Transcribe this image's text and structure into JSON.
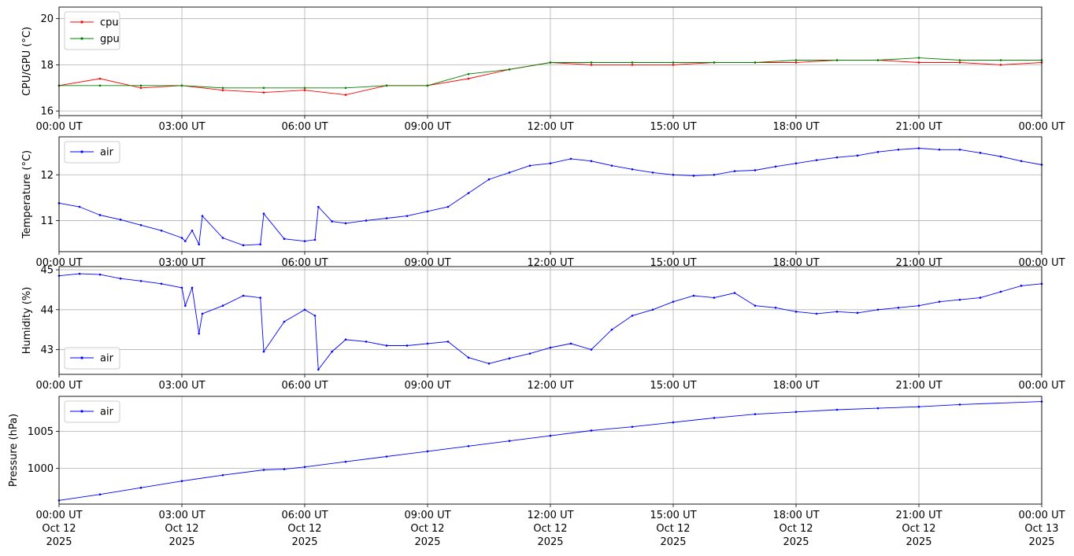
{
  "chart_data": [
    {
      "type": "line",
      "ylabel": "CPU/GPU (°C)",
      "xlim": [
        "2025-10-12 00:00",
        "2025-10-13 00:00"
      ],
      "ylim": [
        15.8,
        20.5
      ],
      "yticks": [
        16,
        18,
        20
      ],
      "grid": true,
      "legend": "upper-left",
      "series": [
        {
          "name": "cpu",
          "color": "#ff0000",
          "x": [
            "2025-10-12 00:00",
            "2025-10-12 01:00",
            "2025-10-12 02:00",
            "2025-10-12 03:00",
            "2025-10-12 04:00",
            "2025-10-12 05:00",
            "2025-10-12 06:00",
            "2025-10-12 07:00",
            "2025-10-12 08:00",
            "2025-10-12 09:00",
            "2025-10-12 10:00",
            "2025-10-12 11:00",
            "2025-10-12 12:00",
            "2025-10-12 13:00",
            "2025-10-12 14:00",
            "2025-10-12 15:00",
            "2025-10-12 16:00",
            "2025-10-12 17:00",
            "2025-10-12 18:00",
            "2025-10-12 19:00",
            "2025-10-12 20:00",
            "2025-10-12 21:00",
            "2025-10-12 22:00",
            "2025-10-12 23:00",
            "2025-10-13 00:00"
          ],
          "y": [
            17.1,
            17.4,
            17.0,
            17.1,
            16.9,
            16.8,
            16.9,
            16.7,
            17.1,
            17.1,
            17.4,
            17.8,
            18.1,
            18.0,
            18.0,
            18.0,
            18.1,
            18.1,
            18.1,
            18.2,
            18.2,
            18.1,
            18.1,
            18.0,
            18.1
          ]
        },
        {
          "name": "gpu",
          "color": "#008000",
          "x": [
            "2025-10-12 00:00",
            "2025-10-12 01:00",
            "2025-10-12 02:00",
            "2025-10-12 03:00",
            "2025-10-12 04:00",
            "2025-10-12 05:00",
            "2025-10-12 06:00",
            "2025-10-12 07:00",
            "2025-10-12 08:00",
            "2025-10-12 09:00",
            "2025-10-12 10:00",
            "2025-10-12 11:00",
            "2025-10-12 12:00",
            "2025-10-12 13:00",
            "2025-10-12 14:00",
            "2025-10-12 15:00",
            "2025-10-12 16:00",
            "2025-10-12 17:00",
            "2025-10-12 18:00",
            "2025-10-12 19:00",
            "2025-10-12 20:00",
            "2025-10-12 21:00",
            "2025-10-12 22:00",
            "2025-10-12 23:00",
            "2025-10-13 00:00"
          ],
          "y": [
            17.1,
            17.1,
            17.1,
            17.1,
            17.0,
            17.0,
            17.0,
            17.0,
            17.1,
            17.1,
            17.6,
            17.8,
            18.1,
            18.1,
            18.1,
            18.1,
            18.1,
            18.1,
            18.2,
            18.2,
            18.2,
            18.3,
            18.2,
            18.2,
            18.2
          ]
        }
      ]
    },
    {
      "type": "line",
      "ylabel": "Temperature (°C)",
      "xlim": [
        "2025-10-12 00:00",
        "2025-10-13 00:00"
      ],
      "ylim": [
        10.32,
        12.83
      ],
      "yticks": [
        11,
        12
      ],
      "grid": true,
      "legend": "upper-left",
      "series": [
        {
          "name": "air",
          "color": "#0000ff",
          "x": [
            "2025-10-12 00:00",
            "2025-10-12 00:30",
            "2025-10-12 01:00",
            "2025-10-12 01:30",
            "2025-10-12 02:00",
            "2025-10-12 02:30",
            "2025-10-12 03:00",
            "2025-10-12 03:05",
            "2025-10-12 03:15",
            "2025-10-12 03:25",
            "2025-10-12 03:30",
            "2025-10-12 04:00",
            "2025-10-12 04:30",
            "2025-10-12 04:55",
            "2025-10-12 05:00",
            "2025-10-12 05:30",
            "2025-10-12 06:00",
            "2025-10-12 06:15",
            "2025-10-12 06:20",
            "2025-10-12 06:40",
            "2025-10-12 07:00",
            "2025-10-12 07:30",
            "2025-10-12 08:00",
            "2025-10-12 08:30",
            "2025-10-12 09:00",
            "2025-10-12 09:30",
            "2025-10-12 10:00",
            "2025-10-12 10:30",
            "2025-10-12 11:00",
            "2025-10-12 11:30",
            "2025-10-12 12:00",
            "2025-10-12 12:30",
            "2025-10-12 13:00",
            "2025-10-12 13:30",
            "2025-10-12 14:00",
            "2025-10-12 14:30",
            "2025-10-12 15:00",
            "2025-10-12 15:30",
            "2025-10-12 16:00",
            "2025-10-12 16:30",
            "2025-10-12 17:00",
            "2025-10-12 17:30",
            "2025-10-12 18:00",
            "2025-10-12 18:30",
            "2025-10-12 19:00",
            "2025-10-12 19:30",
            "2025-10-12 20:00",
            "2025-10-12 20:30",
            "2025-10-12 21:00",
            "2025-10-12 21:30",
            "2025-10-12 22:00",
            "2025-10-12 22:30",
            "2025-10-12 23:00",
            "2025-10-12 23:30",
            "2025-10-13 00:00"
          ],
          "y": [
            11.38,
            11.3,
            11.12,
            11.02,
            10.9,
            10.78,
            10.62,
            10.55,
            10.78,
            10.48,
            11.1,
            10.62,
            10.46,
            10.48,
            11.15,
            10.6,
            10.55,
            10.58,
            11.3,
            10.98,
            10.94,
            11.0,
            11.05,
            11.1,
            11.2,
            11.3,
            11.6,
            11.9,
            12.05,
            12.2,
            12.25,
            12.35,
            12.3,
            12.2,
            12.12,
            12.05,
            12.0,
            11.98,
            12.0,
            12.08,
            12.1,
            12.18,
            12.25,
            12.32,
            12.38,
            12.42,
            12.5,
            12.55,
            12.58,
            12.55,
            12.55,
            12.48,
            12.4,
            12.3,
            12.22
          ]
        }
      ]
    },
    {
      "type": "line",
      "ylabel": "Humidity (%)",
      "xlim": [
        "2025-10-12 00:00",
        "2025-10-13 00:00"
      ],
      "ylim": [
        42.38,
        45.08
      ],
      "yticks": [
        43,
        44,
        45
      ],
      "grid": true,
      "legend": "lower-left",
      "series": [
        {
          "name": "air",
          "color": "#0000ff",
          "x": [
            "2025-10-12 00:00",
            "2025-10-12 00:30",
            "2025-10-12 01:00",
            "2025-10-12 01:30",
            "2025-10-12 02:00",
            "2025-10-12 02:30",
            "2025-10-12 03:00",
            "2025-10-12 03:05",
            "2025-10-12 03:15",
            "2025-10-12 03:25",
            "2025-10-12 03:30",
            "2025-10-12 04:00",
            "2025-10-12 04:30",
            "2025-10-12 04:55",
            "2025-10-12 05:00",
            "2025-10-12 05:30",
            "2025-10-12 06:00",
            "2025-10-12 06:15",
            "2025-10-12 06:20",
            "2025-10-12 06:40",
            "2025-10-12 07:00",
            "2025-10-12 07:30",
            "2025-10-12 08:00",
            "2025-10-12 08:30",
            "2025-10-12 09:00",
            "2025-10-12 09:30",
            "2025-10-12 10:00",
            "2025-10-12 10:30",
            "2025-10-12 11:00",
            "2025-10-12 11:30",
            "2025-10-12 12:00",
            "2025-10-12 12:30",
            "2025-10-12 13:00",
            "2025-10-12 13:30",
            "2025-10-12 14:00",
            "2025-10-12 14:30",
            "2025-10-12 15:00",
            "2025-10-12 15:30",
            "2025-10-12 16:00",
            "2025-10-12 16:30",
            "2025-10-12 17:00",
            "2025-10-12 17:30",
            "2025-10-12 18:00",
            "2025-10-12 18:30",
            "2025-10-12 19:00",
            "2025-10-12 19:30",
            "2025-10-12 20:00",
            "2025-10-12 20:30",
            "2025-10-12 21:00",
            "2025-10-12 21:30",
            "2025-10-12 22:00",
            "2025-10-12 22:30",
            "2025-10-12 23:00",
            "2025-10-12 23:30",
            "2025-10-13 00:00"
          ],
          "y": [
            44.85,
            44.9,
            44.88,
            44.78,
            44.72,
            44.65,
            44.55,
            44.1,
            44.55,
            43.4,
            43.9,
            44.1,
            44.35,
            44.3,
            42.95,
            43.7,
            44.0,
            43.85,
            42.5,
            42.95,
            43.25,
            43.2,
            43.1,
            43.1,
            43.15,
            43.2,
            42.8,
            42.65,
            42.78,
            42.9,
            43.05,
            43.15,
            43.0,
            43.5,
            43.85,
            44.0,
            44.2,
            44.35,
            44.3,
            44.42,
            44.1,
            44.05,
            43.95,
            43.9,
            43.95,
            43.92,
            44.0,
            44.05,
            44.1,
            44.2,
            44.25,
            44.3,
            44.45,
            44.6,
            44.65
          ]
        }
      ]
    },
    {
      "type": "line",
      "ylabel": "Pressure (hPa)",
      "xlim": [
        "2025-10-12 00:00",
        "2025-10-13 00:00"
      ],
      "ylim": [
        995.2,
        1009.7
      ],
      "yticks": [
        1000,
        1005
      ],
      "grid": true,
      "legend": "upper-left",
      "series": [
        {
          "name": "air",
          "color": "#0000ff",
          "x": [
            "2025-10-12 00:00",
            "2025-10-12 01:00",
            "2025-10-12 02:00",
            "2025-10-12 03:00",
            "2025-10-12 04:00",
            "2025-10-12 05:00",
            "2025-10-12 05:30",
            "2025-10-12 06:00",
            "2025-10-12 07:00",
            "2025-10-12 08:00",
            "2025-10-12 09:00",
            "2025-10-12 10:00",
            "2025-10-12 11:00",
            "2025-10-12 12:00",
            "2025-10-12 13:00",
            "2025-10-12 14:00",
            "2025-10-12 15:00",
            "2025-10-12 16:00",
            "2025-10-12 17:00",
            "2025-10-12 18:00",
            "2025-10-12 19:00",
            "2025-10-12 20:00",
            "2025-10-12 21:00",
            "2025-10-12 22:00",
            "2025-10-13 00:00"
          ],
          "y": [
            995.7,
            996.5,
            997.4,
            998.3,
            999.1,
            999.8,
            999.9,
            1000.2,
            1000.9,
            1001.6,
            1002.3,
            1003.0,
            1003.7,
            1004.4,
            1005.1,
            1005.6,
            1006.2,
            1006.8,
            1007.3,
            1007.6,
            1007.9,
            1008.1,
            1008.3,
            1008.6,
            1009.0
          ]
        }
      ]
    }
  ],
  "xaxis": {
    "time_ticks": [
      "00:00 UT",
      "03:00 UT",
      "06:00 UT",
      "09:00 UT",
      "12:00 UT",
      "15:00 UT",
      "18:00 UT",
      "21:00 UT",
      "00:00 UT"
    ],
    "date_ticks": [
      "Oct 12",
      "Oct 12",
      "Oct 12",
      "Oct 12",
      "Oct 12",
      "Oct 12",
      "Oct 12",
      "Oct 12",
      "Oct 13"
    ],
    "year_ticks": [
      "2025",
      "2025",
      "2025",
      "2025",
      "2025",
      "2025",
      "2025",
      "2025",
      "2025"
    ]
  }
}
